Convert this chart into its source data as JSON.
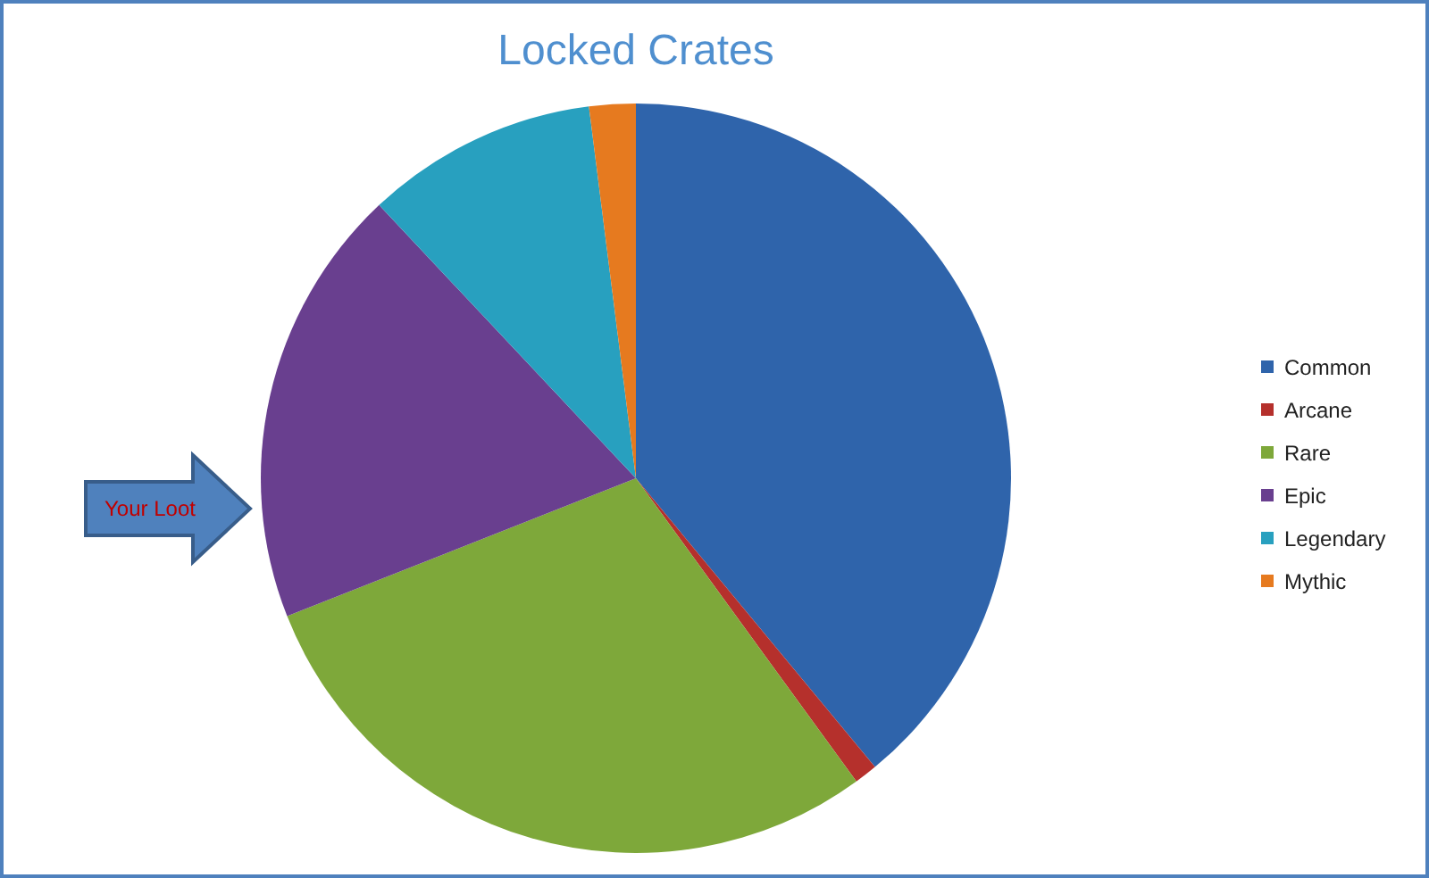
{
  "chart_data": {
    "type": "pie",
    "title": "Locked Crates",
    "categories": [
      "Common",
      "Arcane",
      "Rare",
      "Epic",
      "Legendary",
      "Mythic"
    ],
    "values": [
      39,
      1,
      29,
      19,
      10,
      2
    ],
    "colors": [
      "#2f64ab",
      "#b5302c",
      "#7ea83a",
      "#693f8f",
      "#28a0bf",
      "#e67a1f"
    ],
    "legend": "right",
    "annotations": [
      "Your Loot"
    ]
  }
}
